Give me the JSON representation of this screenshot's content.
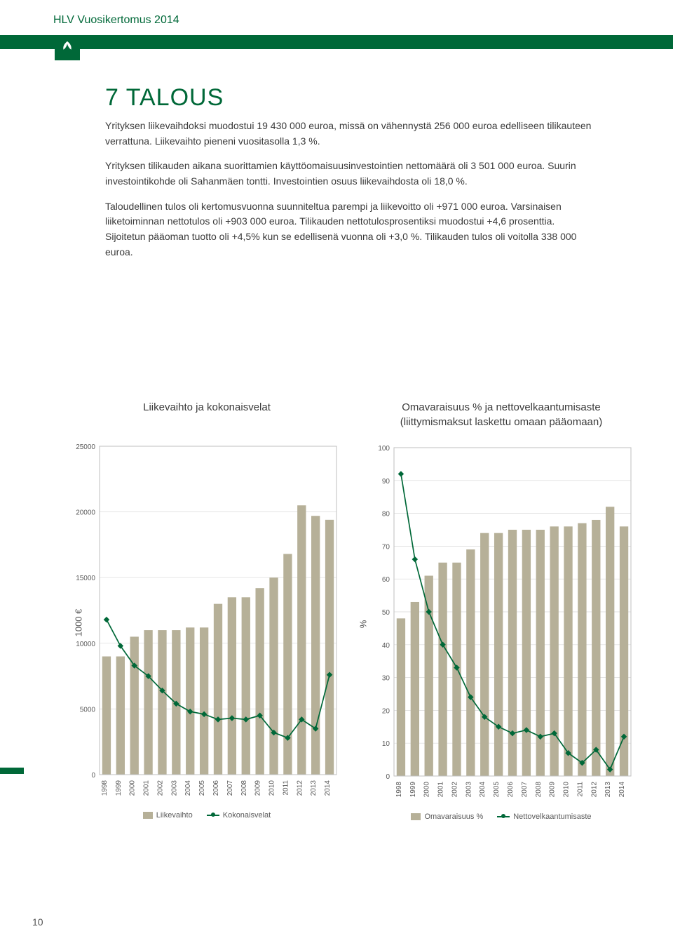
{
  "header": "HLV Vuosikertomus 2014",
  "title": "7 TALOUS",
  "para1": "Yrityksen liikevaihdoksi muodostui 19 430 000 euroa, missä on vähennystä 256 000 euroa edelliseen tilikauteen verrattuna. Liikevaihto pieneni vuositasolla 1,3 %.",
  "para2": "Yrityksen tilikauden aikana suorittamien käyttöomaisuusinvestointien nettomäärä oli 3 501 000 euroa. Suurin investointikohde oli Sahanmäen tontti. Investointien osuus liikevaihdosta oli 18,0 %.",
  "para3": "Taloudellinen tulos oli kertomusvuonna suunniteltua parempi ja liikevoitto oli +971 000 euroa. Varsinaisen liiketoiminnan nettotulos oli +903 000 euroa. Tilikauden nettotulosprosentiksi muodostui +4,6 prosenttia. Sijoitetun pääoman tuotto oli +4,5% kun se edellisenä vuonna oli +3,0 %. Tilikauden tulos oli voitolla 338 000 euroa.",
  "page_num": "10",
  "chart1": {
    "title": "Liikevaihto ja kokonaisvelat",
    "ylabel": "1000 €",
    "years": [
      "1998",
      "1999",
      "2000",
      "2001",
      "2002",
      "2003",
      "2004",
      "2005",
      "2006",
      "2007",
      "2008",
      "2009",
      "2010",
      "2011",
      "2012",
      "2013",
      "2014"
    ],
    "bars": [
      9000,
      9000,
      10500,
      11000,
      11000,
      11000,
      11200,
      11200,
      13000,
      13500,
      13500,
      14200,
      15000,
      16800,
      20500,
      19700,
      19400
    ],
    "line": [
      11800,
      9800,
      8300,
      7500,
      6400,
      5400,
      4800,
      4600,
      4200,
      4300,
      4200,
      4500,
      3200,
      2800,
      4200,
      3500,
      7600
    ],
    "ymin": 0,
    "ymax": 25000,
    "ystep": 5000,
    "bar_color": "#b6b098",
    "line_color": "#006838",
    "grid_color": "#d9d9d9",
    "border_color": "#bfbfbf",
    "legend": [
      "Liikevaihto",
      "Kokonaisvelat"
    ]
  },
  "chart2": {
    "title": "Omavaraisuus % ja nettovelkaantumisaste (liittymismaksut laskettu omaan pääomaan)",
    "ylabel": "%",
    "years": [
      "1998",
      "1999",
      "2000",
      "2001",
      "2002",
      "2003",
      "2004",
      "2005",
      "2006",
      "2007",
      "2008",
      "2009",
      "2010",
      "2011",
      "2012",
      "2013",
      "2014"
    ],
    "bars": [
      48,
      53,
      61,
      65,
      65,
      69,
      74,
      74,
      75,
      75,
      75,
      76,
      76,
      77,
      78,
      82,
      76
    ],
    "line": [
      92,
      66,
      50,
      40,
      33,
      24,
      18,
      15,
      13,
      14,
      12,
      13,
      7,
      4,
      8,
      2,
      12
    ],
    "ymin": 0,
    "ymax": 100,
    "ystep": 10,
    "bar_color": "#b6b098",
    "line_color": "#006838",
    "grid_color": "#d9d9d9",
    "border_color": "#bfbfbf",
    "legend": [
      "Omavaraisuus %",
      "Nettovelkaantumisaste"
    ]
  }
}
